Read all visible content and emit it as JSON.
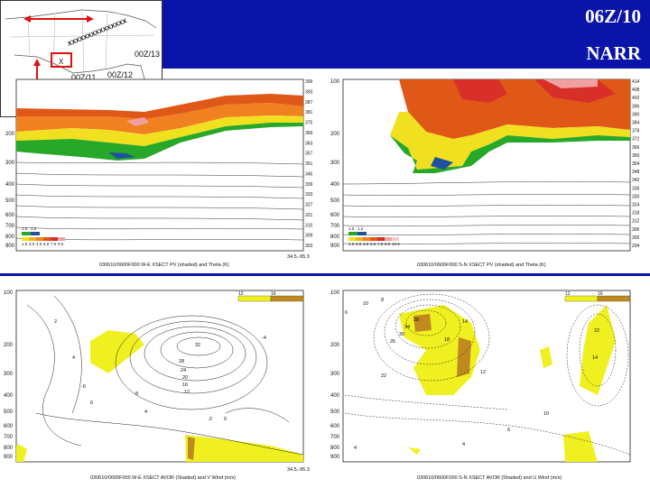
{
  "header": {
    "title": "06Z/10",
    "subtitle": "NARR"
  },
  "inset_map": {
    "labels": [
      "00Z/13",
      "00Z/11",
      "00Z/12"
    ],
    "track_marker": "XXXXXXXXXXXXXXX",
    "box_label": "X",
    "colors": {
      "track": "#111111",
      "arrows": "#e01010",
      "box": "#e01010"
    }
  },
  "chart_data": [
    {
      "type": "heatmap",
      "panel": "top-left",
      "caption": "030610/0600F000 W-E XSECT PV (shaded) and Theta (K)",
      "corner_label": "34.5,-95.3",
      "yaxis": {
        "scale": "log",
        "ticks": [
          100,
          200,
          300,
          400,
          500,
          600,
          700,
          800,
          900
        ],
        "tick_labels": [
          "",
          "200",
          "300",
          "400",
          "500",
          "600",
          "700",
          "800",
          "900"
        ]
      },
      "right_labels": [
        "399",
        "393",
        "387",
        "381",
        "375",
        "369",
        "363",
        "357",
        "351",
        "345",
        "339",
        "333",
        "327",
        "321",
        "315",
        "309",
        "303"
      ],
      "legend": {
        "values": [
          "1.0",
          "1.2",
          "1.5",
          "3.0",
          "4.5",
          "6.0",
          "7.5",
          "9.0"
        ],
        "colors": [
          "#28a828",
          "#2050a0",
          "#f0e020",
          "#f0b020",
          "#f08020",
          "#e05818",
          "#d83028",
          "#f0a0a0"
        ]
      }
    },
    {
      "type": "heatmap",
      "panel": "top-right",
      "caption": "030610/0600F000 S-N XSECT PV (shaded) and Theta (K)",
      "yaxis": {
        "scale": "log",
        "ticks": [
          100,
          200,
          300,
          400,
          500,
          600,
          700,
          800,
          900
        ],
        "tick_labels": [
          "100",
          "200",
          "300",
          "400",
          "500",
          "600",
          "700",
          "800",
          "900"
        ]
      },
      "right_labels": [
        "414",
        "408",
        "402",
        "396",
        "390",
        "384",
        "378",
        "372",
        "366",
        "360",
        "354",
        "348",
        "342",
        "336",
        "330",
        "324",
        "318",
        "312",
        "306",
        "300",
        "294"
      ],
      "legend": {
        "values": [
          "1.0",
          "1.2",
          "1.5",
          "3.0",
          "4.5",
          "6.0",
          "7.5",
          "9.0",
          "10.6"
        ],
        "colors": [
          "#28a828",
          "#2050a0",
          "#f0e020",
          "#f0b020",
          "#f08020",
          "#e05818",
          "#d83028",
          "#f0a0a0",
          "#f8c8c8"
        ]
      }
    },
    {
      "type": "heatmap",
      "panel": "bottom-left",
      "caption": "030610/0600F000 W-E XSECT AVOR (Shaded) and V Wind (m/s)",
      "corner_label": "34.5,-95.3",
      "yaxis": {
        "scale": "log",
        "ticks": [
          100,
          200,
          300,
          400,
          500,
          600,
          700,
          800,
          900
        ],
        "tick_labels": [
          "100",
          "200",
          "300",
          "400",
          "500",
          "600",
          "700",
          "800",
          "900"
        ]
      },
      "legend": {
        "values": [
          "12",
          "16"
        ],
        "colors": [
          "#f0f020",
          "#c08a20"
        ]
      },
      "contour_labels": [
        "32",
        "28",
        "24",
        "20",
        "16",
        "12",
        "8",
        "4",
        "0",
        "-2",
        "-4",
        "-6",
        "2",
        "4",
        "6"
      ]
    },
    {
      "type": "heatmap",
      "panel": "bottom-right",
      "caption": "030610/0600F000 S-N XSECT AVOR (Shaded) and U Wind (m/s)",
      "yaxis": {
        "scale": "log",
        "ticks": [
          100,
          200,
          300,
          400,
          500,
          600,
          700,
          800,
          900
        ],
        "tick_labels": [
          "100",
          "200",
          "300",
          "400",
          "500",
          "600",
          "700",
          "800",
          "900"
        ]
      },
      "legend": {
        "values": [
          "12",
          "16"
        ],
        "colors": [
          "#f0f020",
          "#c08a20"
        ]
      },
      "contour_labels": [
        "38",
        "34",
        "30",
        "26",
        "22",
        "18",
        "14",
        "12",
        "10",
        "8",
        "6",
        "4",
        "22",
        "14",
        "10",
        "6",
        "4"
      ]
    }
  ]
}
